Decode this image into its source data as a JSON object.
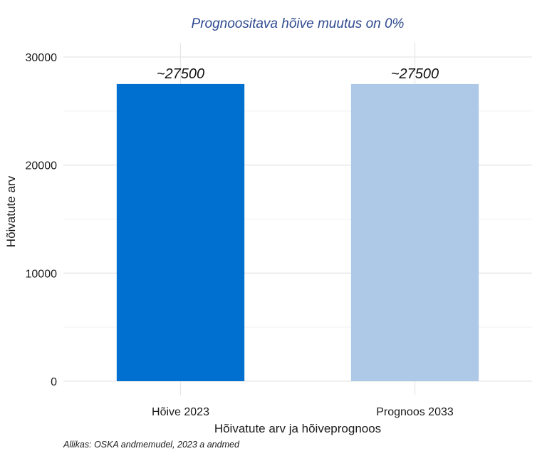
{
  "chart_data": {
    "type": "bar",
    "title": "Prognoositava hõive muutus on 0%",
    "xlabel": "Hõivatute arv ja hõiveprognoos",
    "ylabel": "Hõivatute arv",
    "categories": [
      "Hõive 2023",
      "Prognoos 2033"
    ],
    "values": [
      27500,
      27500
    ],
    "data_labels": [
      "~27500",
      "~27500"
    ],
    "colors": [
      "#0070d0",
      "#aec8e8"
    ],
    "ylim": [
      0,
      30000
    ],
    "yticks": [
      0,
      10000,
      20000,
      30000
    ],
    "ytick_labels": [
      "0",
      "10000",
      "20000",
      "30000"
    ],
    "grid": true,
    "caption": "Allikas: OSKA andmemudel, 2023 a andmed"
  }
}
